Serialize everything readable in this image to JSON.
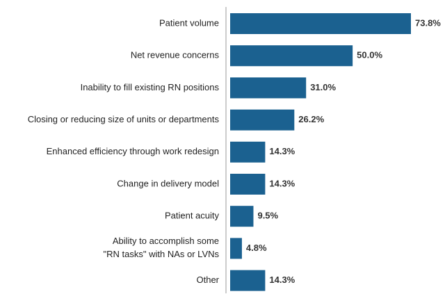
{
  "chart_data": {
    "type": "barh",
    "categories": [
      "Patient volume",
      "Net revenue concerns",
      "Inability to fill existing RN positions",
      "Closing or reducing size of units or departments",
      "Enhanced efficiency through work redesign",
      "Change in delivery model",
      "Patient acuity",
      "Ability to accomplish some\n\"RN tasks\" with NAs or LVNs",
      "Other"
    ],
    "values": [
      73.8,
      50.0,
      31.0,
      26.2,
      14.3,
      14.3,
      9.5,
      4.8,
      14.3
    ],
    "value_labels": [
      "73.8%",
      "50.0%",
      "31.0%",
      "26.2%",
      "14.3%",
      "14.3%",
      "9.5%",
      "4.8%",
      "14.3%"
    ],
    "color": "#1b6190"
  }
}
